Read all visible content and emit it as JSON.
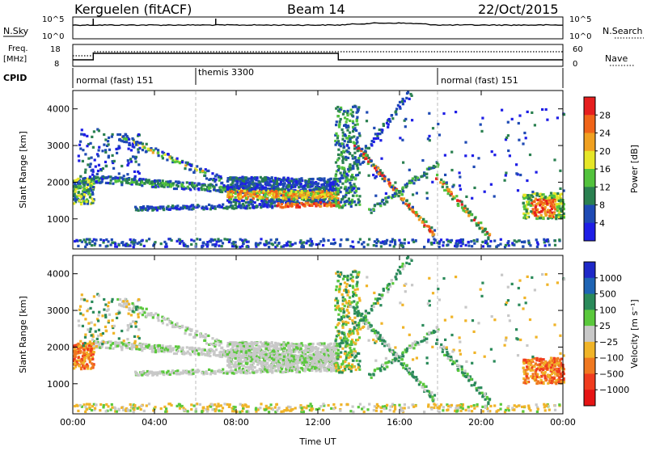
{
  "header": {
    "station": "Kerguelen (fitACF)",
    "beam": "Beam 14",
    "date": "22/Oct/2015"
  },
  "top_strip": {
    "nsky_label": "N.Sky",
    "nsky_ticks": [
      "10^5",
      "10^0"
    ],
    "nsearch_label": "N.Search",
    "nsearch_ticks": [
      "10^5",
      "10^0"
    ],
    "freq_label": "Freq.",
    "freq_unit": "[MHz]",
    "freq_ticks": [
      "18",
      "8"
    ],
    "nave_label": "Nave",
    "nave_ticks": [
      "60",
      "0"
    ],
    "cpid_label": "CPID",
    "modes": [
      {
        "label": "normal (fast) 151",
        "start_h": 0,
        "end_h": 6
      },
      {
        "label": "themis 3300",
        "start_h": 6,
        "end_h": 18
      },
      {
        "label": "normal (fast) 151",
        "start_h": 18,
        "end_h": 24
      }
    ]
  },
  "chart_data": [
    {
      "type": "heatmap",
      "quantity": "Power",
      "ylabel": "Slant Range [km]",
      "xlabel": "Time UT",
      "xlim": [
        0,
        24
      ],
      "ylim": [
        180,
        4500
      ],
      "y_ticks": [
        1000,
        2000,
        3000,
        4000
      ],
      "x_tick_labels": [
        "00:00",
        "04:00",
        "08:00",
        "12:00",
        "16:00",
        "20:00",
        "00:00"
      ],
      "colorbar": {
        "label": "Power [dB]",
        "ticks": [
          "4",
          "8",
          "12",
          "16",
          "20",
          "24",
          "28"
        ],
        "colors": [
          "#1e1ee6",
          "#1e4ab4",
          "#2a8050",
          "#52c23c",
          "#e6e628",
          "#f0a020",
          "#f06418",
          "#e61e1e"
        ]
      }
    },
    {
      "type": "heatmap",
      "quantity": "Velocity",
      "ylabel": "Slant Range [km]",
      "xlabel": "Time UT",
      "xlim": [
        0,
        24
      ],
      "ylim": [
        180,
        4500
      ],
      "y_ticks": [
        1000,
        2000,
        3000,
        4000
      ],
      "x_tick_labels": [
        "00:00",
        "04:00",
        "08:00",
        "12:00",
        "16:00",
        "20:00",
        "00:00"
      ],
      "colorbar": {
        "label": "Velocity [m s⁻¹]",
        "ticks": [
          "1000",
          "500",
          "100",
          "25",
          "−25",
          "−100",
          "−500",
          "−1000"
        ],
        "colors": [
          "#1e28c8",
          "#1e64b4",
          "#2a8a5a",
          "#5ac83c",
          "#c8c8c8",
          "#f0b428",
          "#f07820",
          "#f03c1e",
          "#e61414"
        ]
      }
    }
  ]
}
